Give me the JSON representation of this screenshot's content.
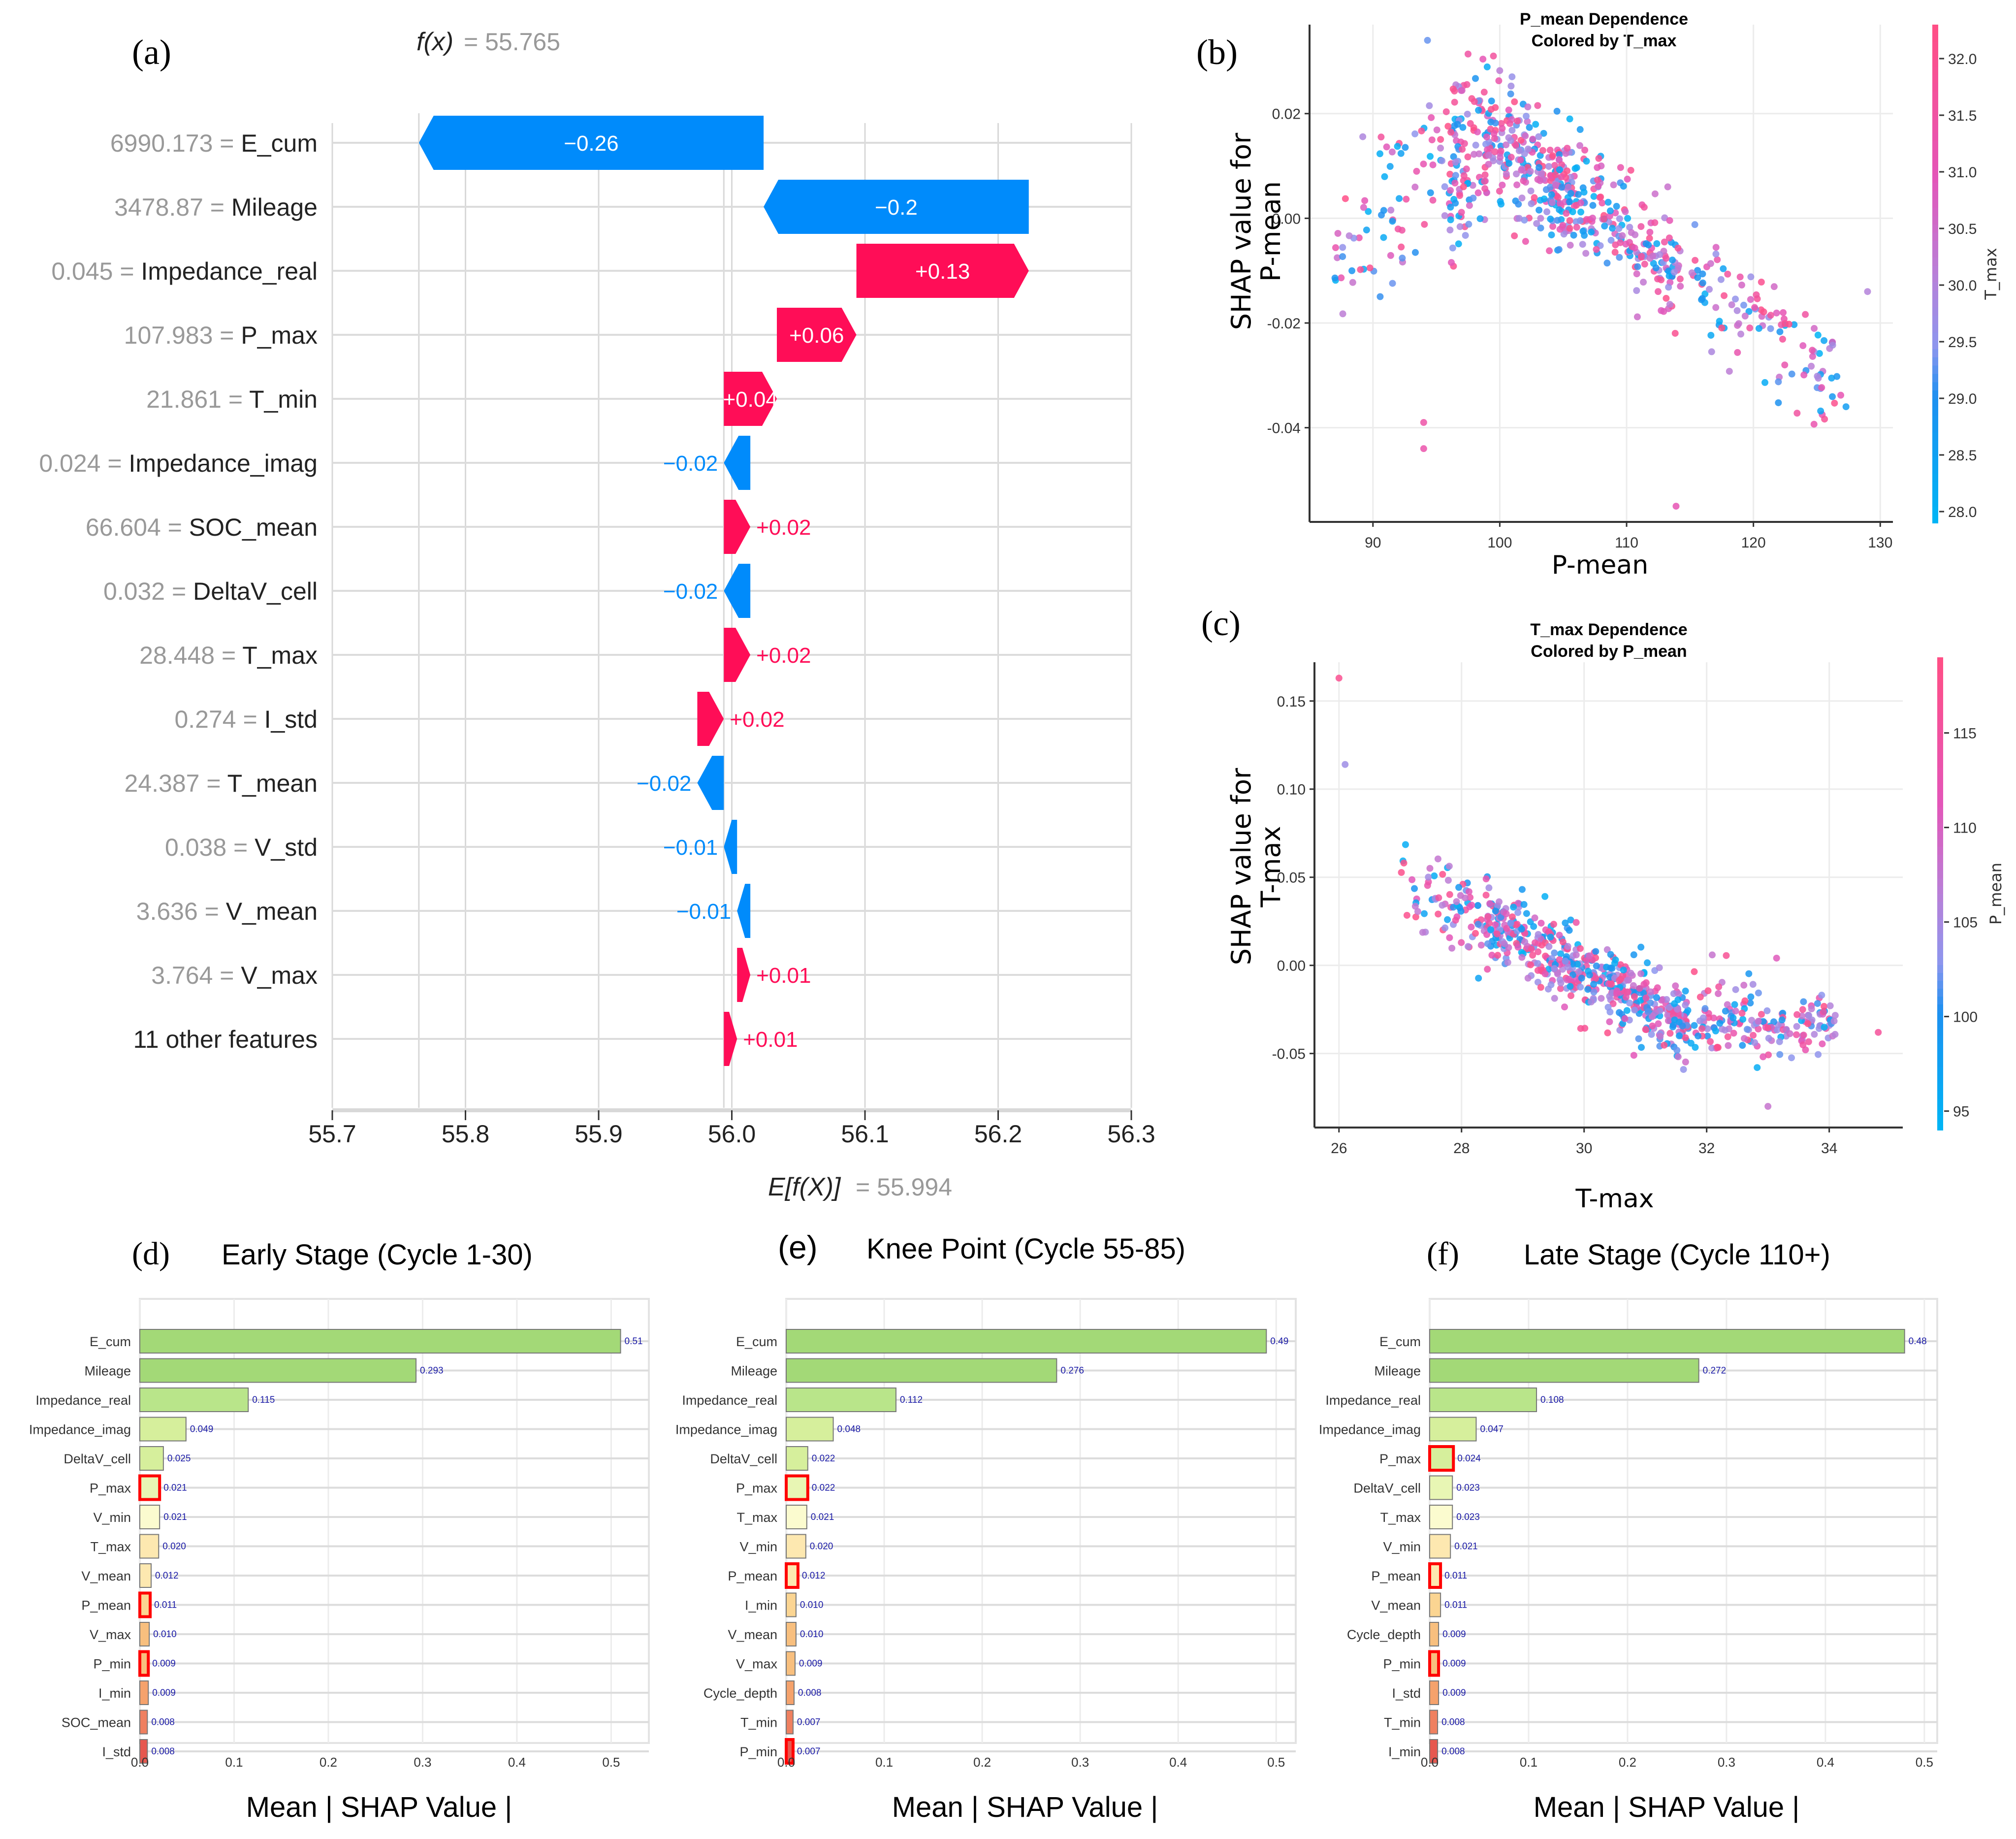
{
  "chart_data": [
    {
      "panel": "a",
      "type": "waterfall",
      "panel_label": "(a)",
      "fx_label": "f(x)",
      "fx_value": "= 55.765",
      "fx": 55.765,
      "efx_label": "E[f(X)]",
      "efx_value": "= 55.994",
      "base_value": 55.994,
      "xlim": [
        55.7,
        56.3
      ],
      "xticks": [
        "55.7",
        "55.8",
        "55.9",
        "56.0",
        "56.1",
        "56.2",
        "56.3"
      ],
      "rows": [
        {
          "value_text": "6990.173",
          "feature": "E_cum",
          "shap": -0.26,
          "label": "−0.26"
        },
        {
          "value_text": "3478.87",
          "feature": "Mileage",
          "shap": -0.2,
          "label": "−0.2"
        },
        {
          "value_text": "0.045",
          "feature": "Impedance_real",
          "shap": 0.13,
          "label": "+0.13"
        },
        {
          "value_text": "107.983",
          "feature": "P_max",
          "shap": 0.06,
          "label": "+0.06"
        },
        {
          "value_text": "21.861",
          "feature": "T_min",
          "shap": 0.04,
          "label": "+0.04"
        },
        {
          "value_text": "0.024",
          "feature": "Impedance_imag",
          "shap": -0.02,
          "label": "−0.02"
        },
        {
          "value_text": "66.604",
          "feature": "SOC_mean",
          "shap": 0.02,
          "label": "+0.02"
        },
        {
          "value_text": "0.032",
          "feature": "DeltaV_cell",
          "shap": -0.02,
          "label": "−0.02"
        },
        {
          "value_text": "28.448",
          "feature": "T_max",
          "shap": 0.02,
          "label": "+0.02"
        },
        {
          "value_text": "0.274",
          "feature": "I_std",
          "shap": 0.02,
          "label": "+0.02"
        },
        {
          "value_text": "24.387",
          "feature": "T_mean",
          "shap": -0.02,
          "label": "−0.02"
        },
        {
          "value_text": "0.038",
          "feature": "V_std",
          "shap": -0.01,
          "label": "−0.01"
        },
        {
          "value_text": "3.636",
          "feature": "V_mean",
          "shap": -0.01,
          "label": "−0.01"
        },
        {
          "value_text": "3.764",
          "feature": "V_max",
          "shap": 0.01,
          "label": "+0.01"
        },
        {
          "value_text": "",
          "feature": "11 other features",
          "shap": 0.01,
          "label": "+0.01"
        }
      ],
      "colors": {
        "positive": "#ff0d57",
        "negative": "#008bfb"
      }
    },
    {
      "panel": "b",
      "type": "scatter",
      "panel_label": "(b)",
      "title": [
        "P_mean Dependence",
        "Colored by T_max"
      ],
      "xlabel": "P-mean",
      "ylabel": [
        "SHAP value for",
        "P-mean"
      ],
      "xlim": [
        85,
        131
      ],
      "ylim": [
        -0.058,
        0.037
      ],
      "xticks": [
        90,
        100,
        110,
        120,
        130
      ],
      "yticks": [
        0.02,
        0.0,
        -0.02,
        -0.04
      ],
      "ytick_labels": [
        "0.02",
        "0.00",
        "-0.02",
        "-0.04"
      ],
      "colorbar": {
        "label": "T_max",
        "range": [
          27.9,
          32.3
        ],
        "ticks": [
          "28.0",
          "28.5",
          "29.0",
          "29.5",
          "30.0",
          "30.5",
          "31.0",
          "31.5",
          "32.0"
        ]
      },
      "trend": "rises from ~0.0 at P-mean 90 to ~0.015 peak near 100, then declines roughly linearly to ~-0.03 at 125",
      "outliers": [
        [
          94.3,
          0.034
        ],
        [
          99.5,
          0.031
        ],
        [
          94,
          -0.044
        ],
        [
          94,
          -0.039
        ],
        [
          113.9,
          -0.055
        ],
        [
          129,
          -0.014
        ],
        [
          127.3,
          -0.036
        ]
      ]
    },
    {
      "panel": "c",
      "type": "scatter",
      "panel_label": "(c)",
      "title": [
        "T_max Dependence",
        "Colored by P_mean"
      ],
      "xlabel": "T-max",
      "ylabel": [
        "SHAP value for",
        "T-max"
      ],
      "xlim": [
        25.6,
        35.2
      ],
      "ylim": [
        -0.092,
        0.172
      ],
      "xticks": [
        26,
        28,
        30,
        32,
        34
      ],
      "yticks": [
        0.15,
        0.1,
        0.05,
        0.0,
        -0.05
      ],
      "ytick_labels": [
        "0.15",
        "0.10",
        "0.05",
        "0.00",
        "-0.05"
      ],
      "colorbar": {
        "label": "P_mean",
        "range": [
          94,
          119
        ],
        "ticks": [
          "95",
          "100",
          "105",
          "110",
          "115"
        ]
      },
      "trend": "decreases from ~0.04 at T-max 27.5 to ~-0.03 at 31.5, flattening toward 34",
      "outliers": [
        [
          26.0,
          0.163
        ],
        [
          26.1,
          0.114
        ],
        [
          33.0,
          -0.08
        ],
        [
          34.8,
          -0.038
        ]
      ]
    },
    {
      "panel": "d",
      "type": "bar",
      "panel_label": "(d)",
      "title": "Early Stage (Cycle 1-30)",
      "xlabel": "Mean | SHAP Value |",
      "xlim": [
        0,
        0.54
      ],
      "xticks": [
        "0.0",
        "0.1",
        "0.2",
        "0.3",
        "0.4",
        "0.5"
      ],
      "categories": [
        "E_cum",
        "Mileage",
        "Impedance_real",
        "Impedance_imag",
        "DeltaV_cell",
        "P_max",
        "V_min",
        "T_max",
        "V_mean",
        "P_mean",
        "V_max",
        "P_min",
        "I_min",
        "SOC_mean",
        "I_std"
      ],
      "values": [
        0.51,
        0.293,
        0.115,
        0.049,
        0.025,
        0.021,
        0.021,
        0.02,
        0.012,
        0.011,
        0.01,
        0.009,
        0.009,
        0.008,
        0.008
      ],
      "value_labels": [
        "0.51",
        "0.293",
        "0.115",
        "0.049",
        "0.025",
        "0.021",
        "0.021",
        "0.020",
        "0.012",
        "0.011",
        "0.010",
        "0.009",
        "0.009",
        "0.008",
        "0.008"
      ],
      "highlighted": [
        "P_max",
        "P_mean",
        "P_min"
      ]
    },
    {
      "panel": "e",
      "type": "bar",
      "panel_label": "(e)",
      "title": "Knee Point (Cycle 55-85)",
      "xlabel": "Mean | SHAP Value |",
      "xlim": [
        0,
        0.52
      ],
      "xticks": [
        "0.0",
        "0.1",
        "0.2",
        "0.3",
        "0.4",
        "0.5"
      ],
      "categories": [
        "E_cum",
        "Mileage",
        "Impedance_real",
        "Impedance_imag",
        "DeltaV_cell",
        "P_max",
        "T_max",
        "V_min",
        "P_mean",
        "I_min",
        "V_mean",
        "V_max",
        "Cycle_depth",
        "T_min",
        "P_min"
      ],
      "values": [
        0.49,
        0.276,
        0.112,
        0.048,
        0.022,
        0.022,
        0.021,
        0.02,
        0.012,
        0.01,
        0.01,
        0.009,
        0.008,
        0.007,
        0.007
      ],
      "value_labels": [
        "0.49",
        "0.276",
        "0.112",
        "0.048",
        "0.022",
        "0.022",
        "0.021",
        "0.020",
        "0.012",
        "0.010",
        "0.010",
        "0.009",
        "0.008",
        "0.007",
        "0.007"
      ],
      "highlighted": [
        "P_max",
        "P_mean",
        "P_min"
      ]
    },
    {
      "panel": "f",
      "type": "bar",
      "panel_label": "(f)",
      "title": "Late Stage (Cycle 110+)",
      "xlabel": "Mean | SHAP Value |",
      "xlim": [
        0,
        0.513
      ],
      "xticks": [
        "0.0",
        "0.1",
        "0.2",
        "0.3",
        "0.4",
        "0.5"
      ],
      "categories": [
        "E_cum",
        "Mileage",
        "Impedance_real",
        "Impedance_imag",
        "P_max",
        "DeltaV_cell",
        "T_max",
        "V_min",
        "P_mean",
        "V_mean",
        "Cycle_depth",
        "P_min",
        "I_std",
        "T_min",
        "I_min"
      ],
      "values": [
        0.48,
        0.272,
        0.108,
        0.047,
        0.024,
        0.023,
        0.023,
        0.021,
        0.011,
        0.011,
        0.009,
        0.009,
        0.009,
        0.008,
        0.008
      ],
      "value_labels": [
        "0.48",
        "0.272",
        "0.108",
        "0.047",
        "0.024",
        "0.023",
        "0.023",
        "0.021",
        "0.011",
        "0.011",
        "0.009",
        "0.009",
        "0.009",
        "0.008",
        "0.008"
      ],
      "highlighted": [
        "P_max",
        "P_mean",
        "P_min"
      ]
    }
  ],
  "colors": {
    "shap_positive": "#ff0d57",
    "shap_negative": "#008bfb",
    "highlight_outline": "#ff0000",
    "value_label": "#1a1aa6",
    "bar_gradient": [
      "#a3d977",
      "#b9e58a",
      "#d6ef9c",
      "#e8f6b4",
      "#fbfbcf",
      "#fde8b0",
      "#fbd592",
      "#f8bf7e",
      "#f5a26c",
      "#ef8060",
      "#e6584f"
    ]
  }
}
